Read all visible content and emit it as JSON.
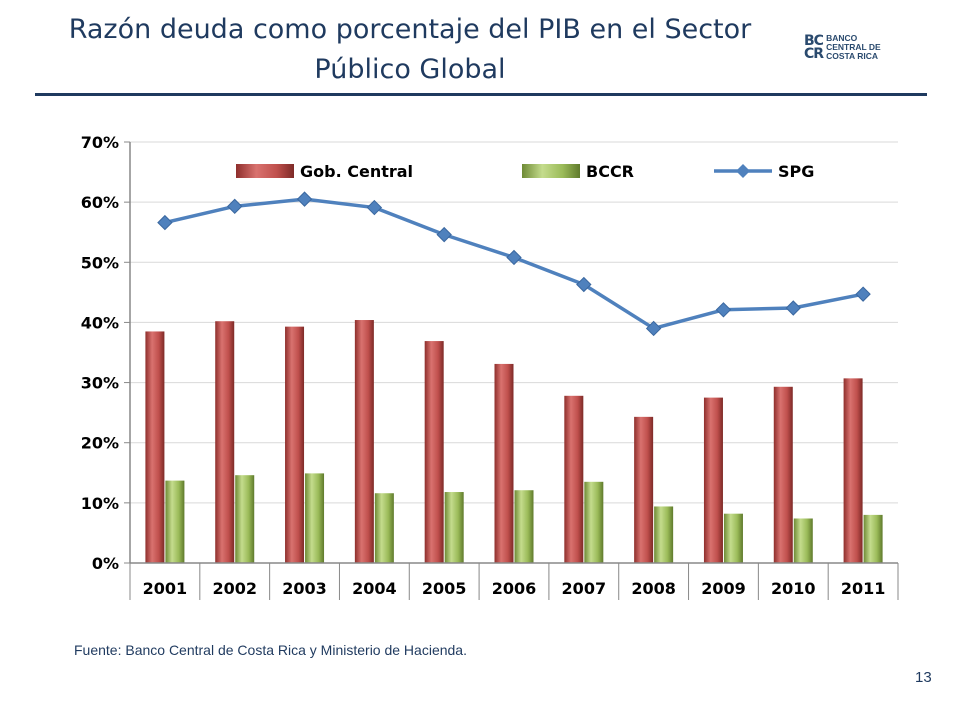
{
  "slide": {
    "title_line1": "Razón deuda como porcentaje del PIB en el Sector",
    "title_line2": "Público Global",
    "logo_mark_top": "BC",
    "logo_mark_bottom": "CR",
    "logo_text_1": "BANCO",
    "logo_text_2": "CENTRAL DE",
    "logo_text_3": "COSTA RICA",
    "source": "Fuente: Banco Central de Costa Rica y Ministerio de Hacienda.",
    "page_number": "13"
  },
  "colors": {
    "gob_central": "#c0504d",
    "bccr": "#9bbb59",
    "spg": "#4f81bd",
    "title": "#1f3a5f"
  },
  "chart_data": {
    "type": "bar",
    "title": "",
    "xlabel": "",
    "ylabel": "",
    "categories": [
      "2001",
      "2002",
      "2003",
      "2004",
      "2005",
      "2006",
      "2007",
      "2008",
      "2009",
      "2010",
      "2011"
    ],
    "ylim": [
      0,
      70
    ],
    "yticks": [
      "0%",
      "10%",
      "20%",
      "30%",
      "40%",
      "50%",
      "60%",
      "70%"
    ],
    "grid": true,
    "legend_position": "top",
    "series": [
      {
        "name": "Gob. Central",
        "kind": "bar",
        "values": [
          38.5,
          40.2,
          39.3,
          40.4,
          36.9,
          33.1,
          27.8,
          24.3,
          27.5,
          29.3,
          30.7
        ]
      },
      {
        "name": "BCCR",
        "kind": "bar",
        "values": [
          13.7,
          14.6,
          14.9,
          11.6,
          11.8,
          12.1,
          13.5,
          9.4,
          8.2,
          7.4,
          8.0
        ]
      },
      {
        "name": "SPG",
        "kind": "line",
        "values": [
          56.6,
          59.3,
          60.5,
          59.1,
          54.6,
          50.8,
          46.3,
          39.0,
          42.1,
          42.4,
          44.7
        ]
      }
    ]
  }
}
